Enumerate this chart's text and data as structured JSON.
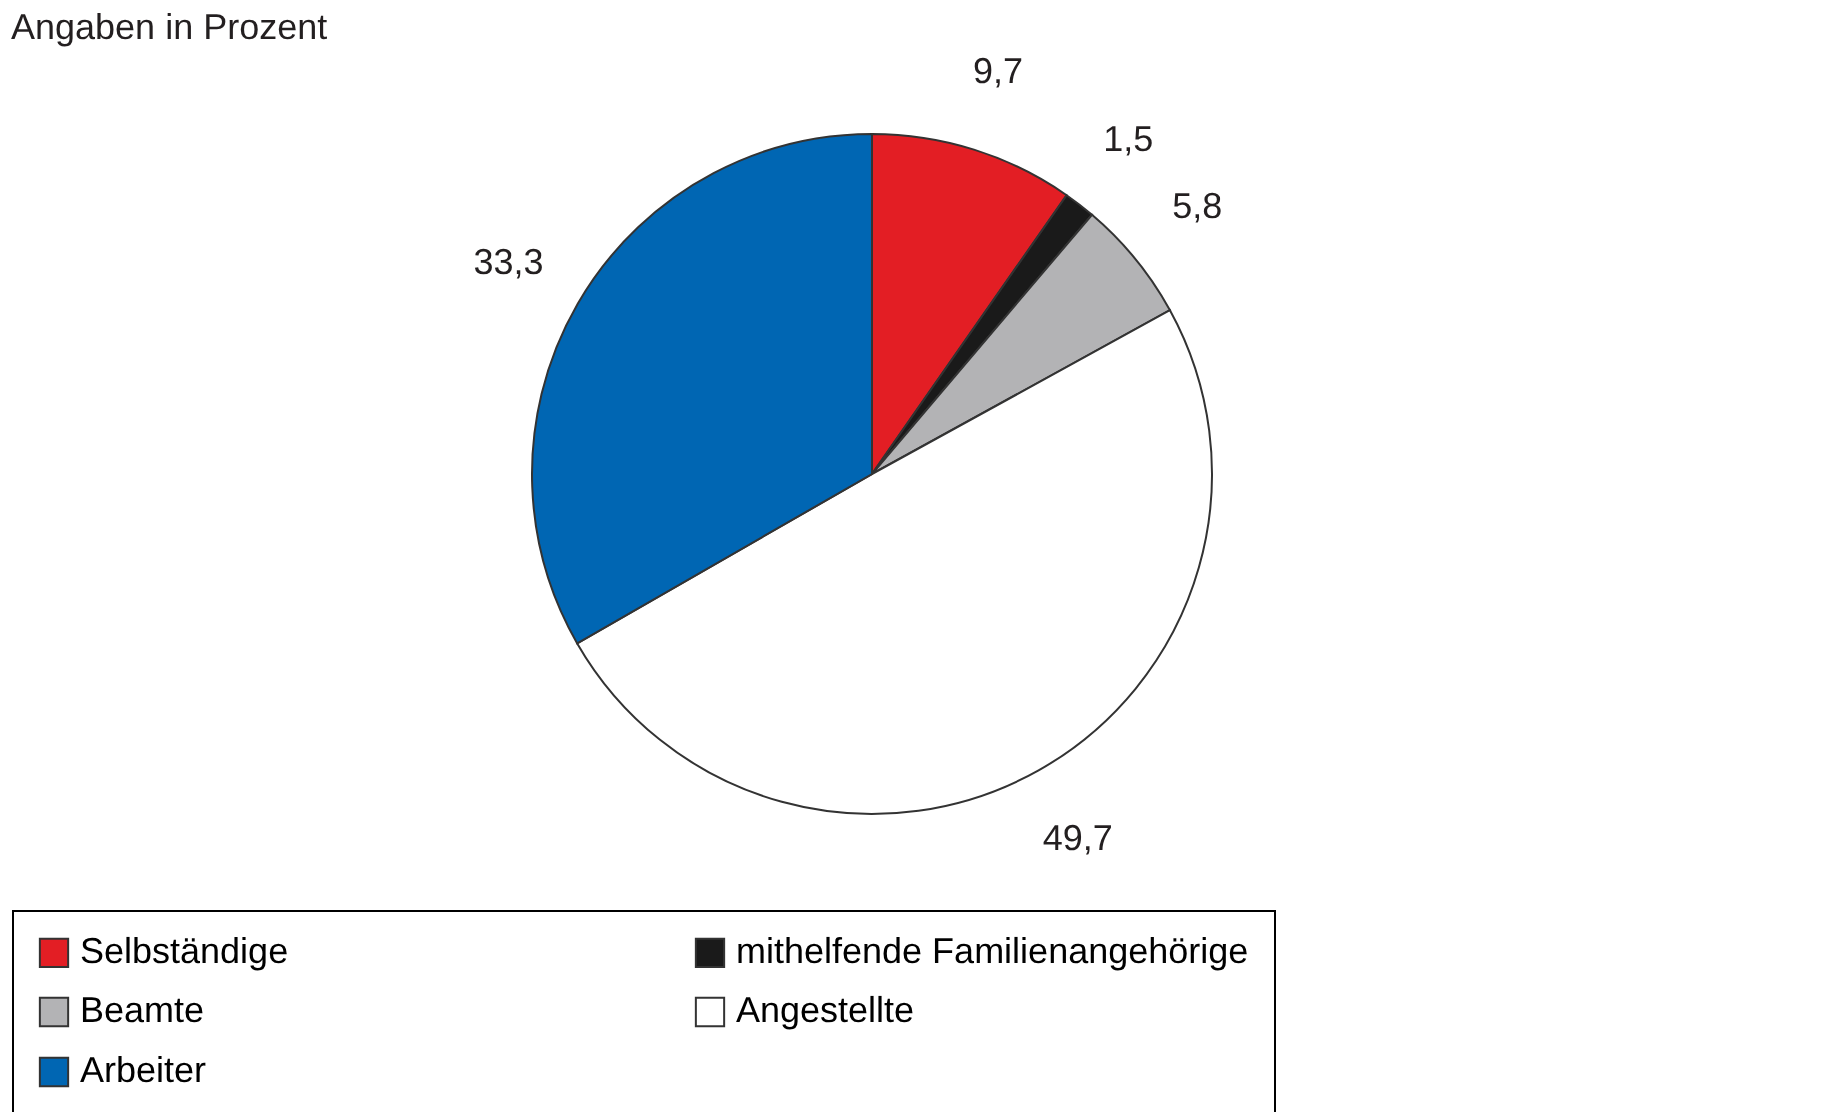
{
  "chart_data": {
    "type": "pie",
    "title": "Angaben in Prozent",
    "categories": [
      "Selbständige",
      "mithelfende Familienangehörige",
      "Beamte",
      "Angestellte",
      "Arbeiter"
    ],
    "values": [
      9.7,
      1.5,
      5.8,
      49.7,
      33.3
    ],
    "colors": [
      "#e31e24",
      "#1a1a1a",
      "#b3b3b5",
      "#ffffff",
      "#0066b3"
    ],
    "value_labels": [
      "9,7",
      "1,5",
      "5,8",
      "49,7",
      "33,3"
    ],
    "legend": "bottom"
  }
}
